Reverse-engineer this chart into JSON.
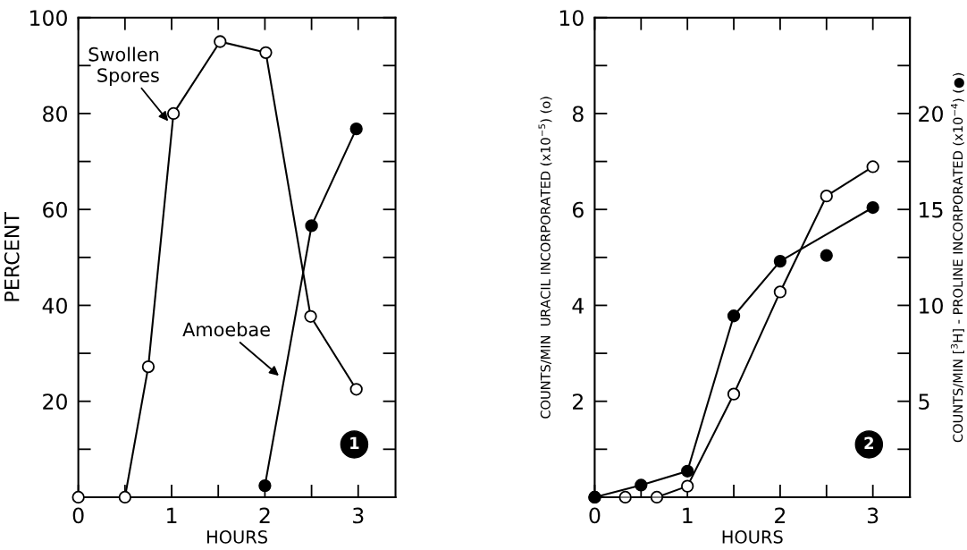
{
  "chart_data": [
    {
      "type": "line",
      "xlabel": "HOURS",
      "ylabel": "PERCENT",
      "xlim": [
        0,
        3.4
      ],
      "ylim": [
        0,
        100
      ],
      "xticks": [
        0,
        {
          "value": 0.5,
          "label": null
        },
        1,
        {
          "value": 1.5,
          "label": null
        },
        2,
        {
          "value": 2.5,
          "label": null
        },
        3
      ],
      "yticks": [
        {
          "value": 0,
          "label": null
        },
        {
          "value": 10,
          "label": null
        },
        20,
        {
          "value": 30,
          "label": null
        },
        40,
        {
          "value": 50,
          "label": null
        },
        60,
        {
          "value": 70,
          "label": null
        },
        80,
        {
          "value": 90,
          "label": null
        },
        100
      ],
      "marker": "circle",
      "grid": false,
      "legend": false,
      "series": [
        {
          "color": "#ffffff",
          "x": [
            0,
            0.5,
            0.75,
            1.02,
            1.52,
            2.01,
            2.49,
            2.98
          ],
          "values": [
            0,
            0,
            27.2,
            80,
            95,
            92.7,
            37.7,
            22.5
          ]
        },
        {
          "color": "#000000",
          "x": [
            2,
            2.5,
            2.98
          ],
          "values": [
            2.4,
            56.6,
            76.8
          ]
        }
      ],
      "annotations": [
        {
          "text": "Swollen\nSpores",
          "x": 0.98,
          "y": 78
        },
        {
          "text": "Amoebae",
          "x": 2.17,
          "y": 25
        },
        "1"
      ]
    },
    {
      "type": "line",
      "xlabel": "HOURS",
      "ylabel": "COUNTS/MIN  URACIL INCORPORATED (x10$^{−5}$) (o)",
      "y2label": "COUNTS/MIN [$^{3}$H] - PROLINE INCORPORATED (x10$^{−4}$) (●)",
      "xlim": [
        0,
        3.4
      ],
      "ylim": [
        0,
        10
      ],
      "y2lim": [
        0,
        25
      ],
      "xticks": [
        0,
        {
          "value": 0.5,
          "label": null
        },
        1,
        {
          "value": 1.5,
          "label": null
        },
        2,
        {
          "value": 2.5,
          "label": null
        },
        3
      ],
      "yticks": [
        {
          "value": 0,
          "label": null
        },
        {
          "value": 1,
          "label": null
        },
        2,
        {
          "value": 3,
          "label": null
        },
        4,
        {
          "value": 5,
          "label": null
        },
        6,
        {
          "value": 7,
          "label": null
        },
        8,
        {
          "value": 9,
          "label": null
        },
        10
      ],
      "y2ticks": [
        {
          "value": 2.5,
          "label": null
        },
        5,
        {
          "value": 7.5,
          "label": null
        },
        10,
        {
          "value": 12.5,
          "label": null
        },
        15,
        {
          "value": 17.5,
          "label": null
        },
        20,
        {
          "value": 22.5,
          "label": null
        }
      ],
      "marker": "circle",
      "grid": false,
      "legend": false,
      "series": [
        {
          "color": "#ffffff",
          "x": [
            0,
            0.33,
            0.67,
            1,
            1.5,
            2,
            2.5,
            3
          ],
          "values": [
            0,
            0,
            0,
            0.23,
            2.15,
            4.28,
            6.28,
            6.89
          ]
        },
        {
          "color": "#000000",
          "axis": "y2",
          "x": [
            0,
            0.5,
            1,
            1.5,
            2,
            3
          ],
          "values": [
            0,
            0.63,
            1.36,
            9.45,
            12.3,
            15.1
          ]
        },
        {
          "type": "scatter",
          "color": "#000000",
          "axis": "y2",
          "x": [
            2.5
          ],
          "values": [
            12.6
          ]
        }
      ],
      "annotations": [
        "2"
      ]
    }
  ]
}
